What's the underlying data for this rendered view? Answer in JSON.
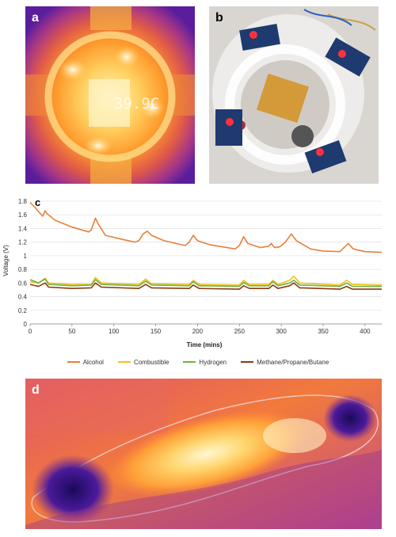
{
  "panels": {
    "a": {
      "label": "a",
      "readout": "39.9C"
    },
    "b": {
      "label": "b"
    },
    "c": {
      "label": "c"
    },
    "d": {
      "label": "d"
    }
  },
  "colors": {
    "alcohol": "#e8803a",
    "combustible": "#f2c01c",
    "hydrogen": "#6fb43f",
    "methane": "#8a3a10"
  },
  "chart_data": {
    "type": "line",
    "xlabel": "Time (mins)",
    "ylabel": "Voltage (V)",
    "xlim": [
      0,
      420
    ],
    "ylim": [
      0,
      1.8
    ],
    "xticks": [
      0,
      50,
      100,
      150,
      200,
      250,
      300,
      350,
      400
    ],
    "yticks": [
      0,
      0.2,
      0.4,
      0.6,
      0.8,
      1,
      1.2,
      1.4,
      1.6,
      1.8
    ],
    "ytick_labels": [
      "0",
      "0.2",
      "0.4",
      "0.6",
      "0.8",
      "1",
      "1.2",
      "1.4",
      "1.6",
      "1.8"
    ],
    "legend_position": "bottom",
    "series": [
      {
        "name": "Alcohol",
        "color": "#e8803a",
        "points": [
          [
            0,
            1.78
          ],
          [
            5,
            1.72
          ],
          [
            12,
            1.62
          ],
          [
            15,
            1.58
          ],
          [
            18,
            1.66
          ],
          [
            20,
            1.62
          ],
          [
            30,
            1.52
          ],
          [
            50,
            1.42
          ],
          [
            70,
            1.35
          ],
          [
            73,
            1.38
          ],
          [
            78,
            1.55
          ],
          [
            82,
            1.45
          ],
          [
            90,
            1.3
          ],
          [
            110,
            1.24
          ],
          [
            125,
            1.2
          ],
          [
            130,
            1.22
          ],
          [
            135,
            1.32
          ],
          [
            140,
            1.36
          ],
          [
            145,
            1.3
          ],
          [
            160,
            1.22
          ],
          [
            185,
            1.15
          ],
          [
            190,
            1.2
          ],
          [
            195,
            1.3
          ],
          [
            200,
            1.22
          ],
          [
            215,
            1.16
          ],
          [
            245,
            1.1
          ],
          [
            250,
            1.15
          ],
          [
            255,
            1.28
          ],
          [
            260,
            1.18
          ],
          [
            275,
            1.12
          ],
          [
            285,
            1.14
          ],
          [
            288,
            1.18
          ],
          [
            292,
            1.12
          ],
          [
            298,
            1.13
          ],
          [
            305,
            1.2
          ],
          [
            312,
            1.32
          ],
          [
            318,
            1.22
          ],
          [
            335,
            1.1
          ],
          [
            350,
            1.07
          ],
          [
            370,
            1.06
          ],
          [
            375,
            1.12
          ],
          [
            380,
            1.18
          ],
          [
            386,
            1.1
          ],
          [
            400,
            1.06
          ],
          [
            420,
            1.05
          ]
        ]
      },
      {
        "name": "Combustible",
        "color": "#f2c01c",
        "points": [
          [
            0,
            0.62
          ],
          [
            10,
            0.6
          ],
          [
            18,
            0.67
          ],
          [
            22,
            0.6
          ],
          [
            50,
            0.58
          ],
          [
            73,
            0.58
          ],
          [
            78,
            0.68
          ],
          [
            85,
            0.6
          ],
          [
            130,
            0.58
          ],
          [
            138,
            0.66
          ],
          [
            145,
            0.59
          ],
          [
            190,
            0.58
          ],
          [
            195,
            0.64
          ],
          [
            202,
            0.58
          ],
          [
            250,
            0.57
          ],
          [
            255,
            0.64
          ],
          [
            262,
            0.58
          ],
          [
            285,
            0.58
          ],
          [
            290,
            0.64
          ],
          [
            296,
            0.58
          ],
          [
            310,
            0.64
          ],
          [
            315,
            0.7
          ],
          [
            322,
            0.6
          ],
          [
            370,
            0.57
          ],
          [
            378,
            0.64
          ],
          [
            385,
            0.58
          ],
          [
            420,
            0.57
          ]
        ]
      },
      {
        "name": "Hydrogen",
        "color": "#6fb43f",
        "points": [
          [
            0,
            0.65
          ],
          [
            10,
            0.6
          ],
          [
            18,
            0.66
          ],
          [
            22,
            0.58
          ],
          [
            50,
            0.56
          ],
          [
            73,
            0.57
          ],
          [
            78,
            0.65
          ],
          [
            85,
            0.58
          ],
          [
            130,
            0.56
          ],
          [
            138,
            0.63
          ],
          [
            145,
            0.57
          ],
          [
            190,
            0.56
          ],
          [
            195,
            0.62
          ],
          [
            202,
            0.56
          ],
          [
            250,
            0.55
          ],
          [
            255,
            0.61
          ],
          [
            262,
            0.56
          ],
          [
            285,
            0.56
          ],
          [
            290,
            0.62
          ],
          [
            296,
            0.56
          ],
          [
            310,
            0.6
          ],
          [
            315,
            0.64
          ],
          [
            322,
            0.57
          ],
          [
            370,
            0.55
          ],
          [
            378,
            0.6
          ],
          [
            385,
            0.55
          ],
          [
            420,
            0.55
          ]
        ]
      },
      {
        "name": "Methane/Propane/Butane",
        "color": "#8a3a10",
        "points": [
          [
            0,
            0.58
          ],
          [
            10,
            0.55
          ],
          [
            18,
            0.6
          ],
          [
            22,
            0.54
          ],
          [
            50,
            0.52
          ],
          [
            73,
            0.53
          ],
          [
            78,
            0.6
          ],
          [
            85,
            0.54
          ],
          [
            130,
            0.52
          ],
          [
            138,
            0.58
          ],
          [
            145,
            0.53
          ],
          [
            190,
            0.52
          ],
          [
            195,
            0.57
          ],
          [
            202,
            0.52
          ],
          [
            250,
            0.51
          ],
          [
            255,
            0.56
          ],
          [
            262,
            0.52
          ],
          [
            285,
            0.52
          ],
          [
            290,
            0.57
          ],
          [
            296,
            0.52
          ],
          [
            310,
            0.56
          ],
          [
            315,
            0.6
          ],
          [
            322,
            0.53
          ],
          [
            370,
            0.51
          ],
          [
            378,
            0.55
          ],
          [
            385,
            0.51
          ],
          [
            420,
            0.51
          ]
        ]
      }
    ]
  }
}
